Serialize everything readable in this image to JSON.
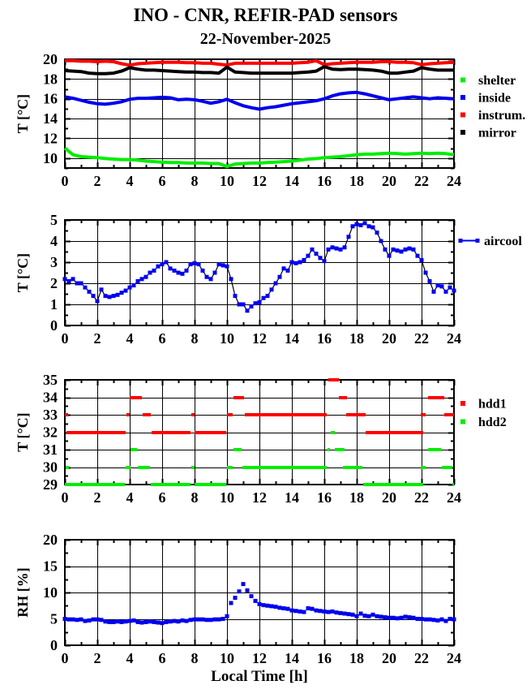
{
  "header": {
    "title": "INO - CNR, REFIR-PAD sensors",
    "subtitle": "22-November-2025"
  },
  "chart_data": [
    {
      "type": "line",
      "name": "sensor-temperatures",
      "ylabel": "T [°C]",
      "x": {
        "min": 0,
        "max": 24,
        "ticks": [
          0,
          2,
          4,
          6,
          8,
          10,
          12,
          14,
          16,
          18,
          20,
          22,
          24
        ],
        "minor_step": 1
      },
      "y": {
        "min": 9,
        "max": 20,
        "ticks": [
          10,
          12,
          14,
          16,
          18,
          20
        ],
        "minor_step": 1
      },
      "legend": [
        {
          "label": "shelter",
          "color": "#00ee00",
          "marker": "square"
        },
        {
          "label": "inside",
          "color": "#0000ee",
          "marker": "square"
        },
        {
          "label": "instrum.",
          "color": "#ff0000",
          "marker": "square"
        },
        {
          "label": "mirror",
          "color": "#000000",
          "marker": "square"
        }
      ],
      "series": [
        {
          "name": "shelter",
          "color": "#00ee00",
          "style": "thick-line",
          "x_start": 0,
          "x_step": 0.5,
          "values": [
            11.0,
            10.35,
            10.15,
            10.1,
            10.05,
            9.95,
            9.9,
            9.85,
            9.85,
            9.8,
            9.7,
            9.65,
            9.6,
            9.55,
            9.55,
            9.5,
            9.5,
            9.5,
            9.45,
            9.45,
            9.15,
            9.4,
            9.45,
            9.5,
            9.5,
            9.55,
            9.6,
            9.65,
            9.7,
            9.8,
            9.9,
            9.95,
            10.05,
            10.1,
            10.15,
            10.25,
            10.35,
            10.4,
            10.4,
            10.45,
            10.5,
            10.45,
            10.4,
            10.45,
            10.5,
            10.45,
            10.5,
            10.45,
            10.35
          ]
        },
        {
          "name": "inside",
          "color": "#0000ee",
          "style": "thick-line",
          "x_start": 0,
          "x_step": 0.5,
          "values": [
            16.2,
            16.05,
            15.85,
            15.65,
            15.5,
            15.45,
            15.55,
            15.7,
            15.95,
            16.05,
            16.05,
            16.1,
            16.15,
            16.1,
            15.9,
            15.95,
            15.9,
            15.75,
            15.55,
            15.7,
            15.95,
            15.6,
            15.3,
            15.1,
            14.95,
            15.1,
            15.2,
            15.35,
            15.5,
            15.6,
            15.7,
            15.8,
            16.0,
            16.3,
            16.5,
            16.6,
            16.65,
            16.5,
            16.3,
            16.1,
            15.9,
            16.0,
            16.1,
            16.2,
            16.1,
            16.0,
            16.1,
            16.05,
            16.0
          ]
        },
        {
          "name": "instrum.",
          "color": "#ff0000",
          "style": "thick-line",
          "x_start": 0,
          "x_step": 0.5,
          "values": [
            19.85,
            19.85,
            19.8,
            19.8,
            19.75,
            19.8,
            19.75,
            19.55,
            19.4,
            19.55,
            19.6,
            19.65,
            19.7,
            19.7,
            19.7,
            19.65,
            19.65,
            19.6,
            19.6,
            19.5,
            19.42,
            19.6,
            19.6,
            19.6,
            19.6,
            19.6,
            19.6,
            19.6,
            19.6,
            19.65,
            19.7,
            19.85,
            19.45,
            19.55,
            19.6,
            19.65,
            19.7,
            19.7,
            19.7,
            19.75,
            19.75,
            19.7,
            19.7,
            19.65,
            19.45,
            19.55,
            19.6,
            19.65,
            19.7
          ]
        },
        {
          "name": "mirror",
          "color": "#000000",
          "style": "thick-line",
          "x_start": 0,
          "x_step": 0.5,
          "values": [
            18.85,
            18.8,
            18.75,
            18.6,
            18.55,
            18.55,
            18.6,
            18.8,
            19.15,
            19.0,
            18.9,
            18.9,
            18.85,
            18.8,
            18.75,
            18.7,
            18.7,
            18.65,
            18.65,
            18.6,
            19.2,
            18.7,
            18.65,
            18.6,
            18.6,
            18.6,
            18.6,
            18.6,
            18.6,
            18.65,
            18.7,
            18.8,
            19.25,
            19.0,
            18.95,
            19.0,
            19.0,
            18.95,
            18.9,
            18.8,
            18.6,
            18.6,
            18.7,
            18.8,
            19.15,
            19.0,
            18.9,
            18.9,
            18.9
          ]
        }
      ]
    },
    {
      "type": "line",
      "name": "aircool-temperature",
      "ylabel": "T [°C]",
      "x": {
        "min": 0,
        "max": 24,
        "ticks": [
          0,
          2,
          4,
          6,
          8,
          10,
          12,
          14,
          16,
          18,
          20,
          22,
          24
        ],
        "minor_step": 1
      },
      "y": {
        "min": 0,
        "max": 5,
        "ticks": [
          0,
          1,
          2,
          3,
          4,
          5
        ],
        "minor_step": 0.5
      },
      "legend": [
        {
          "label": "aircool",
          "color": "#0000ee",
          "marker": "line-square"
        }
      ],
      "series": [
        {
          "name": "aircool",
          "color": "#0000ee",
          "line_color": "#000000",
          "style": "line-markers",
          "x_start": 0,
          "x_step": 0.25,
          "values": [
            2.2,
            2.1,
            2.2,
            2.0,
            2.0,
            1.8,
            1.6,
            1.4,
            1.15,
            1.7,
            1.4,
            1.35,
            1.4,
            1.45,
            1.55,
            1.65,
            1.8,
            1.9,
            2.1,
            2.2,
            2.3,
            2.5,
            2.6,
            2.8,
            2.9,
            3.0,
            2.7,
            2.6,
            2.5,
            2.45,
            2.6,
            2.9,
            2.95,
            2.9,
            2.6,
            2.3,
            2.2,
            2.5,
            2.9,
            2.85,
            2.8,
            2.2,
            1.4,
            1.0,
            1.0,
            0.7,
            0.9,
            1.05,
            1.1,
            1.3,
            1.4,
            1.7,
            2.0,
            2.3,
            2.7,
            2.6,
            3.0,
            2.95,
            3.0,
            3.1,
            3.3,
            3.6,
            3.4,
            3.2,
            3.05,
            3.6,
            3.7,
            3.65,
            3.6,
            3.7,
            4.2,
            4.7,
            4.8,
            4.75,
            4.85,
            4.7,
            4.65,
            4.4,
            4.0,
            3.6,
            3.3,
            3.6,
            3.55,
            3.5,
            3.6,
            3.65,
            3.6,
            3.3,
            3.1,
            2.5,
            2.1,
            1.6,
            1.9,
            1.85,
            1.6,
            1.8,
            1.65
          ]
        }
      ]
    },
    {
      "type": "step-segments",
      "name": "hdd-temperatures",
      "ylabel": "T [°C]",
      "x": {
        "min": 0,
        "max": 24,
        "ticks": [
          0,
          2,
          4,
          6,
          8,
          10,
          12,
          14,
          16,
          18,
          20,
          22,
          24
        ],
        "minor_step": 1
      },
      "y": {
        "min": 29,
        "max": 35,
        "ticks": [
          29,
          30,
          31,
          32,
          33,
          34,
          35
        ],
        "minor_step": 0.5
      },
      "legend": [
        {
          "label": "hdd1",
          "color": "#ff0000",
          "marker": "square"
        },
        {
          "label": "hdd2",
          "color": "#00ee00",
          "marker": "square"
        }
      ],
      "series": [
        {
          "name": "hdd1",
          "color": "#ff0000",
          "style": "segments",
          "segments": [
            [
              33,
              0.0,
              0.2
            ],
            [
              32,
              0.1,
              3.75
            ],
            [
              33,
              3.8,
              4.0
            ],
            [
              34,
              4.0,
              4.75
            ],
            [
              33,
              4.8,
              5.3
            ],
            [
              32,
              5.35,
              7.75
            ],
            [
              33,
              7.8,
              8.0
            ],
            [
              32,
              8.0,
              9.95
            ],
            [
              33,
              10.0,
              10.35
            ],
            [
              34,
              10.4,
              11.05
            ],
            [
              33,
              11.1,
              16.15
            ],
            [
              35,
              16.25,
              16.9
            ],
            [
              34,
              16.9,
              17.4
            ],
            [
              33,
              17.35,
              18.55
            ],
            [
              32,
              18.55,
              22.1
            ],
            [
              33,
              21.95,
              22.25
            ],
            [
              34,
              22.4,
              23.4
            ],
            [
              33,
              23.4,
              24.0
            ]
          ]
        },
        {
          "name": "hdd2",
          "color": "#00ee00",
          "style": "segments",
          "segments": [
            [
              30,
              0.05,
              0.25
            ],
            [
              29,
              0.0,
              3.7
            ],
            [
              30,
              3.75,
              4.05
            ],
            [
              31,
              4.05,
              4.45
            ],
            [
              30,
              4.5,
              5.25
            ],
            [
              29,
              5.3,
              7.75
            ],
            [
              30,
              7.8,
              8.0
            ],
            [
              29,
              8.0,
              9.95
            ],
            [
              30,
              10.0,
              10.35
            ],
            [
              31,
              10.4,
              10.9
            ],
            [
              30,
              10.95,
              16.15
            ],
            [
              31,
              16.2,
              16.35
            ],
            [
              32,
              16.4,
              16.65
            ],
            [
              31,
              16.65,
              17.25
            ],
            [
              30,
              17.15,
              18.35
            ],
            [
              29,
              18.4,
              22.1
            ],
            [
              30,
              21.95,
              22.25
            ],
            [
              31,
              22.4,
              23.2
            ],
            [
              30,
              23.25,
              23.9
            ],
            [
              29,
              23.9,
              24.0
            ]
          ]
        }
      ]
    },
    {
      "type": "scatter",
      "name": "relative-humidity",
      "ylabel": "RH [%]",
      "xlabel": "Local Time [h]",
      "x": {
        "min": 0,
        "max": 24,
        "ticks": [
          0,
          2,
          4,
          6,
          8,
          10,
          12,
          14,
          16,
          18,
          20,
          22,
          24
        ],
        "minor_step": 1
      },
      "y": {
        "min": 0,
        "max": 20,
        "ticks": [
          0,
          5,
          10,
          15,
          20
        ],
        "minor_step": 2.5
      },
      "legend": [],
      "series": [
        {
          "name": "rh",
          "color": "#0000ee",
          "style": "markers",
          "x_start": 0,
          "x_step": 0.25,
          "values": [
            5.0,
            4.9,
            4.9,
            4.8,
            4.9,
            4.6,
            4.7,
            4.9,
            4.9,
            4.8,
            4.5,
            4.4,
            4.4,
            4.5,
            4.4,
            4.5,
            4.6,
            4.7,
            4.4,
            4.3,
            4.4,
            4.5,
            4.4,
            4.3,
            4.2,
            4.4,
            4.5,
            4.6,
            4.5,
            4.7,
            4.6,
            4.8,
            4.9,
            4.9,
            4.9,
            4.8,
            4.8,
            4.9,
            4.9,
            5.0,
            5.5,
            8.0,
            9.0,
            10.2,
            11.6,
            10.4,
            9.3,
            8.4,
            7.8,
            7.6,
            7.5,
            7.4,
            7.3,
            7.1,
            7.0,
            6.9,
            6.6,
            6.5,
            6.4,
            6.3,
            7.0,
            6.9,
            6.6,
            6.5,
            6.4,
            6.3,
            6.4,
            6.2,
            6.1,
            6.0,
            5.9,
            5.8,
            5.5,
            6.0,
            5.6,
            5.5,
            5.8,
            5.5,
            5.4,
            5.3,
            5.2,
            5.2,
            5.1,
            5.2,
            5.4,
            5.3,
            5.2,
            5.0,
            5.0,
            4.9,
            4.9,
            4.8,
            4.7,
            4.9,
            4.6,
            5.0,
            4.9
          ]
        }
      ]
    }
  ]
}
